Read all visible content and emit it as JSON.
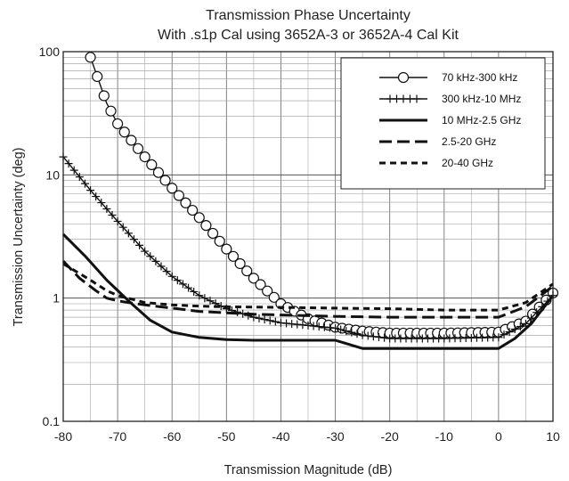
{
  "chart_data": {
    "type": "line",
    "title": "Transmission Phase Uncertainty",
    "subtitle": "With .s1p Cal using 3652A-3 or 3652A-4 Cal Kit",
    "xlabel": "Transmission Magnitude (dB)",
    "ylabel": "Transmission Uncertainty (deg)",
    "xlim": [
      -80,
      10
    ],
    "ylim": [
      0.1,
      100
    ],
    "yscale": "log",
    "grid": true,
    "legend_position": "top-right",
    "x_ticks": [
      "-80",
      "-70",
      "-60",
      "-50",
      "-40",
      "-30",
      "-20",
      "-10",
      "0",
      "10"
    ],
    "y_ticks": [
      "0.1",
      "1",
      "10",
      "100"
    ],
    "series": [
      {
        "name": "70 kHz-300 kHz",
        "style": "circle-markers",
        "x": [
          -75,
          -72,
          -70,
          -65,
          -60,
          -55,
          -50,
          -45,
          -40,
          -35,
          -30,
          -25,
          -20,
          -10,
          0,
          5,
          10
        ],
        "y": [
          90,
          38,
          26,
          14,
          7.8,
          4.5,
          2.5,
          1.45,
          0.9,
          0.68,
          0.58,
          0.54,
          0.52,
          0.52,
          0.53,
          0.65,
          1.1
        ]
      },
      {
        "name": "300 kHz-10 MHz",
        "style": "cross-markers",
        "x": [
          -80,
          -75,
          -70,
          -65,
          -60,
          -55,
          -50,
          -45,
          -40,
          -35,
          -30,
          -25,
          -20,
          -10,
          0,
          5,
          10
        ],
        "y": [
          14,
          7.5,
          4.2,
          2.4,
          1.5,
          1.05,
          0.82,
          0.7,
          0.63,
          0.6,
          0.57,
          0.5,
          0.47,
          0.47,
          0.48,
          0.62,
          1.05
        ]
      },
      {
        "name": "10 MHz-2.5 GHz",
        "style": "solid",
        "x": [
          -80,
          -76,
          -72,
          -68,
          -64,
          -60,
          -55,
          -50,
          -45,
          -40,
          -35,
          -30,
          -25,
          -20,
          -10,
          0,
          3,
          6,
          10
        ],
        "y": [
          3.3,
          2.2,
          1.4,
          0.95,
          0.66,
          0.53,
          0.48,
          0.46,
          0.455,
          0.455,
          0.455,
          0.455,
          0.39,
          0.39,
          0.39,
          0.39,
          0.47,
          0.62,
          1.05
        ]
      },
      {
        "name": "2.5-20 GHz",
        "style": "long-dash",
        "x": [
          -80,
          -77,
          -74,
          -72,
          -70,
          -68,
          -65,
          -60,
          -55,
          -50,
          -45,
          -40,
          -35,
          -30,
          -20,
          -10,
          0,
          5,
          10
        ],
        "y": [
          2.0,
          1.45,
          1.15,
          1.0,
          0.95,
          0.92,
          0.88,
          0.83,
          0.78,
          0.76,
          0.74,
          0.73,
          0.72,
          0.71,
          0.7,
          0.7,
          0.7,
          0.85,
          1.25
        ]
      },
      {
        "name": "20-40 GHz",
        "style": "short-dash",
        "x": [
          -80,
          -75,
          -72,
          -70,
          -65,
          -60,
          -55,
          -50,
          -40,
          -30,
          -20,
          -10,
          0,
          5,
          10
        ],
        "y": [
          1.9,
          1.4,
          1.15,
          1.05,
          0.92,
          0.88,
          0.86,
          0.85,
          0.84,
          0.83,
          0.82,
          0.8,
          0.8,
          0.92,
          1.3
        ]
      }
    ]
  }
}
